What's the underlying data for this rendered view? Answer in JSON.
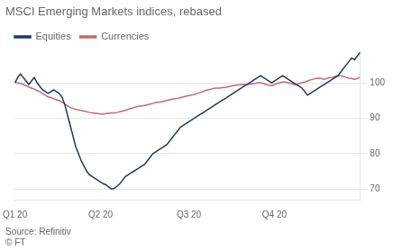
{
  "chart_data": {
    "type": "line",
    "title": "MSCI Emerging Markets indices, rebased",
    "annotation": "Source: Refinitiv\n© FT",
    "categories": [
      "Q1 20",
      null,
      null,
      null,
      null,
      null,
      null,
      null,
      null,
      null,
      null,
      null,
      null,
      null,
      null,
      null,
      null,
      null,
      null,
      null,
      null,
      null,
      null,
      null,
      null,
      null,
      null,
      null,
      null,
      null,
      null,
      "Q2 20",
      null,
      null,
      null,
      null,
      null,
      null,
      null,
      null,
      null,
      null,
      null,
      null,
      null,
      null,
      null,
      null,
      null,
      null,
      null,
      null,
      null,
      null,
      null,
      null,
      null,
      null,
      null,
      null,
      null,
      null,
      null,
      "Q3 20",
      null,
      null,
      null,
      null,
      null,
      null,
      null,
      null,
      null,
      null,
      null,
      null,
      null,
      null,
      null,
      null,
      null,
      null,
      null,
      null,
      null,
      null,
      null,
      null,
      null,
      null,
      null,
      null,
      null,
      null,
      "Q4 20",
      null,
      null,
      null,
      null,
      null,
      null,
      null,
      null,
      null,
      null,
      null,
      null,
      null,
      null,
      null,
      null,
      null,
      null,
      null,
      null,
      null,
      null,
      null,
      null,
      null,
      null,
      null,
      null,
      null,
      null,
      null
    ],
    "series": [
      {
        "name": "Equities",
        "color": "#1B3A6B",
        "values": [
          100.0,
          101.5,
          102.5,
          101.5,
          100.5,
          99.5,
          100.5,
          101.5,
          100.0,
          99.0,
          98.0,
          97.5,
          97.0,
          97.5,
          98.0,
          97.5,
          97.0,
          96.0,
          94.0,
          91.0,
          88.0,
          85.0,
          82.0,
          80.0,
          78.0,
          76.5,
          75.0,
          74.0,
          73.5,
          73.0,
          72.5,
          72.0,
          71.5,
          71.2,
          70.5,
          70.0,
          70.2,
          70.8,
          71.5,
          72.5,
          73.5,
          74.0,
          74.5,
          75.0,
          75.5,
          76.0,
          76.5,
          77.0,
          78.0,
          79.0,
          80.0,
          80.5,
          81.0,
          81.5,
          82.0,
          82.5,
          83.5,
          84.5,
          85.5,
          86.5,
          87.5,
          88.0,
          88.5,
          89.0,
          89.5,
          90.0,
          90.5,
          91.0,
          91.5,
          92.0,
          92.5,
          93.0,
          93.5,
          94.0,
          94.5,
          95.0,
          95.5,
          96.0,
          96.5,
          97.0,
          97.5,
          98.0,
          98.5,
          99.0,
          99.5,
          100.0,
          100.5,
          101.0,
          101.5,
          102.0,
          101.5,
          101.0,
          100.5,
          100.0,
          100.5,
          101.0,
          101.5,
          102.0,
          101.5,
          101.0,
          100.5,
          100.0,
          99.5,
          99.0,
          98.5,
          97.5,
          96.5,
          97.0,
          97.5,
          98.0,
          98.5,
          99.0,
          99.5,
          100.0,
          100.5,
          101.0,
          101.5,
          102.0,
          103.0,
          104.0,
          105.0,
          106.0,
          107.0,
          106.5,
          107.5,
          108.5
        ]
      },
      {
        "name": "Currencies",
        "color": "#C8696A",
        "values": [
          100.0,
          100.0,
          99.8,
          99.5,
          99.2,
          98.8,
          98.5,
          98.2,
          97.8,
          97.5,
          97.0,
          96.5,
          96.0,
          95.8,
          95.5,
          95.2,
          95.0,
          94.5,
          94.0,
          93.5,
          93.0,
          92.8,
          92.5,
          92.3,
          92.2,
          92.0,
          91.8,
          91.6,
          91.5,
          91.4,
          91.3,
          91.2,
          91.2,
          91.3,
          91.4,
          91.5,
          91.5,
          91.6,
          91.8,
          92.0,
          92.2,
          92.5,
          92.7,
          93.0,
          93.2,
          93.4,
          93.5,
          93.6,
          93.8,
          94.0,
          94.2,
          94.4,
          94.5,
          94.6,
          94.8,
          95.0,
          95.2,
          95.4,
          95.5,
          95.6,
          95.8,
          96.0,
          96.2,
          96.4,
          96.5,
          96.7,
          97.0,
          97.2,
          97.5,
          97.8,
          98.0,
          98.2,
          98.4,
          98.5,
          98.5,
          98.6,
          98.7,
          98.8,
          99.0,
          99.2,
          99.3,
          99.4,
          99.5,
          99.5,
          99.5,
          99.6,
          99.7,
          99.8,
          100.0,
          100.0,
          99.8,
          99.5,
          99.3,
          99.2,
          99.5,
          99.8,
          100.0,
          100.2,
          100.2,
          100.0,
          99.8,
          99.5,
          99.5,
          99.8,
          100.0,
          100.2,
          100.5,
          100.8,
          101.0,
          101.2,
          101.3,
          101.2,
          101.0,
          101.2,
          101.4,
          101.5,
          101.8,
          102.0,
          102.0,
          101.8,
          101.5,
          101.3,
          101.2,
          101.0,
          101.2,
          101.5
        ]
      }
    ],
    "ylim": [
      67,
      109
    ],
    "yticks": [
      70,
      80,
      90,
      100
    ],
    "grid": true,
    "legend": "top-left"
  }
}
